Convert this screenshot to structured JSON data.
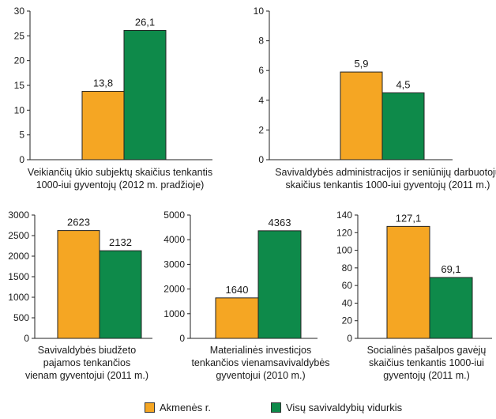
{
  "colors": {
    "akmenes": "#F5A623",
    "vidurkis": "#0E8A4A"
  },
  "legend": {
    "series1": "Akmenės r.",
    "series2": "Visų savivaldybių vidurkis"
  },
  "chart_data": [
    {
      "type": "bar",
      "categories": [
        ""
      ],
      "series": [
        {
          "name": "Akmenės r.",
          "values": [
            13.8
          ]
        },
        {
          "name": "Visų savivaldybių vidurkis",
          "values": [
            26.1
          ]
        }
      ],
      "value_labels": [
        "13,8",
        "26,1"
      ],
      "ylim": [
        0,
        30
      ],
      "yticks": [
        0,
        5,
        10,
        15,
        20,
        25,
        30
      ],
      "caption": [
        "Veikiančių ūkio subjektų skaičius tenkantis",
        "1000-iui gyventojų (2012 m. pradžioje)"
      ],
      "grid": false
    },
    {
      "type": "bar",
      "categories": [
        ""
      ],
      "series": [
        {
          "name": "Akmenės r.",
          "values": [
            5.9
          ]
        },
        {
          "name": "Visų savivaldybių vidurkis",
          "values": [
            4.5
          ]
        }
      ],
      "value_labels": [
        "5,9",
        "4,5"
      ],
      "ylim": [
        0,
        10
      ],
      "yticks": [
        0,
        2,
        4,
        6,
        8,
        10
      ],
      "caption": [
        "Savivaldybės administracijos ir seniūnijų darbuotojų",
        "skaičius tenkantis 1000-iui gyventojų (2011 m.)"
      ],
      "grid": false
    },
    {
      "type": "bar",
      "categories": [
        ""
      ],
      "series": [
        {
          "name": "Akmenės r.",
          "values": [
            2623
          ]
        },
        {
          "name": "Visų savivaldybių vidurkis",
          "values": [
            2132
          ]
        }
      ],
      "value_labels": [
        "2623",
        "2132"
      ],
      "ylim": [
        0,
        3000
      ],
      "yticks": [
        0,
        500,
        1000,
        1500,
        2000,
        2500,
        3000
      ],
      "caption": [
        "Savivaldybės biudžeto",
        "pajamos tenkančios",
        "vienam gyventojui (2011 m.)"
      ],
      "grid": false
    },
    {
      "type": "bar",
      "categories": [
        ""
      ],
      "series": [
        {
          "name": "Akmenės r.",
          "values": [
            1640
          ]
        },
        {
          "name": "Visų savivaldybių vidurkis",
          "values": [
            4363
          ]
        }
      ],
      "value_labels": [
        "1640",
        "4363"
      ],
      "ylim": [
        0,
        5000
      ],
      "yticks": [
        0,
        1000,
        2000,
        3000,
        4000,
        5000
      ],
      "caption": [
        "Materialinės investicjos",
        "tenkančios vienamsavivaldybės",
        "gyventojui (2010 m.)"
      ],
      "grid": false
    },
    {
      "type": "bar",
      "categories": [
        ""
      ],
      "series": [
        {
          "name": "Akmenės r.",
          "values": [
            127.1
          ]
        },
        {
          "name": "Visų savivaldybių vidurkis",
          "values": [
            69.1
          ]
        }
      ],
      "value_labels": [
        "127,1",
        "69,1"
      ],
      "ylim": [
        0,
        140
      ],
      "yticks": [
        0,
        20,
        40,
        60,
        80,
        100,
        120,
        140
      ],
      "caption": [
        "Socialinės pašalpos gavėjų",
        "skaičius tenkantis 1000-iui",
        "gyventojų (2011 m.)"
      ],
      "grid": false
    }
  ]
}
